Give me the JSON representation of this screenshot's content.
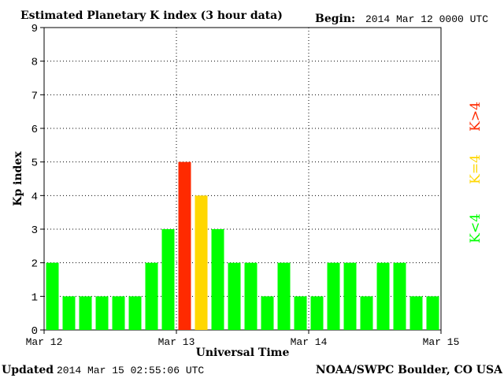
{
  "header": {
    "title": "Estimated Planetary K index (3 hour data)",
    "begin_label": "Begin:",
    "begin_value": "2014 Mar 12 0000 UTC"
  },
  "footer": {
    "updated_label": "Updated",
    "updated_value": "2014 Mar 15 02:55:06 UTC",
    "source": "NOAA/SWPC Boulder, CO USA"
  },
  "legend": {
    "below": "K<4",
    "equal": "K=4",
    "above": "K>4"
  },
  "colors": {
    "below": "#00ff00",
    "equal": "#ffd700",
    "above": "#ff2a00"
  },
  "chart_data": {
    "type": "bar",
    "title": "Estimated Planetary K index (3 hour data)",
    "xlabel": "Universal Time",
    "ylabel": "Kp index",
    "ylim": [
      0,
      9
    ],
    "yticks": [
      0,
      1,
      2,
      3,
      4,
      5,
      6,
      7,
      8,
      9
    ],
    "xticks": [
      "Mar 12",
      "Mar 13",
      "Mar 14",
      "Mar 15"
    ],
    "interval_hours": 3,
    "grid": true,
    "values": [
      2,
      1,
      1,
      1,
      1,
      1,
      2,
      3,
      5,
      4,
      3,
      2,
      2,
      1,
      2,
      1,
      1,
      2,
      2,
      1,
      2,
      2,
      1,
      1
    ]
  }
}
